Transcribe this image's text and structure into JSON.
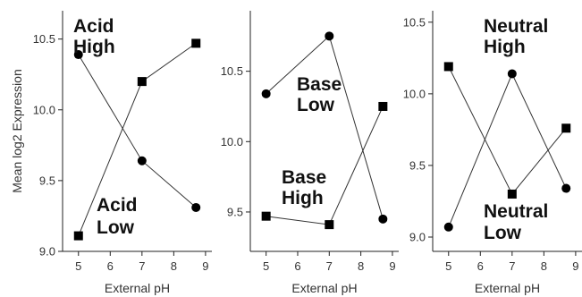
{
  "chart_data": [
    {
      "type": "line",
      "title": "",
      "xlabel": "External pH",
      "ylabel": "Mean log2 Expression",
      "xlim": [
        4.5,
        9.2
      ],
      "ylim": [
        9.0,
        10.7
      ],
      "xticks": [
        5,
        6,
        7,
        8,
        9
      ],
      "yticks": [
        9.0,
        9.5,
        10.0,
        10.5
      ],
      "ytick_labels": [
        "9.0",
        "9.5",
        "10.0",
        "10.5"
      ],
      "series": [
        {
          "marker": "circle",
          "x": [
            5.0,
            7.0,
            8.7
          ],
          "y": [
            10.39,
            9.64,
            9.31
          ]
        },
        {
          "marker": "square",
          "x": [
            5.0,
            7.0,
            8.7
          ],
          "y": [
            9.11,
            10.2,
            10.47
          ]
        }
      ],
      "annotations": [
        {
          "lines": [
            "Acid",
            "High"
          ]
        },
        {
          "lines": [
            "Acid",
            "Low"
          ]
        }
      ]
    },
    {
      "type": "line",
      "title": "",
      "xlabel": "External pH",
      "ylabel": "",
      "xlim": [
        4.5,
        9.2
      ],
      "ylim": [
        9.22,
        10.93
      ],
      "xticks": [
        5,
        6,
        7,
        8,
        9
      ],
      "yticks": [
        9.5,
        10.0,
        10.5
      ],
      "ytick_labels": [
        "9.5",
        "10.0",
        "10.5"
      ],
      "series": [
        {
          "marker": "circle",
          "x": [
            5.0,
            7.0,
            8.7
          ],
          "y": [
            10.34,
            10.75,
            9.45
          ]
        },
        {
          "marker": "square",
          "x": [
            5.0,
            7.0,
            8.7
          ],
          "y": [
            9.47,
            9.41,
            10.25
          ]
        }
      ],
      "annotations": [
        {
          "lines": [
            "Base",
            "Low"
          ]
        },
        {
          "lines": [
            "Base",
            "High"
          ]
        }
      ]
    },
    {
      "type": "line",
      "title": "",
      "xlabel": "External pH",
      "ylabel": "",
      "xlim": [
        4.5,
        9.2
      ],
      "ylim": [
        8.9,
        10.58
      ],
      "xticks": [
        5,
        6,
        7,
        8,
        9
      ],
      "yticks": [
        9.0,
        9.5,
        10.0,
        10.5
      ],
      "ytick_labels": [
        "9.0",
        "9.5",
        "10.0",
        "10.5"
      ],
      "series": [
        {
          "marker": "circle",
          "x": [
            5.0,
            7.0,
            8.7
          ],
          "y": [
            9.07,
            10.14,
            9.34
          ]
        },
        {
          "marker": "square",
          "x": [
            5.0,
            7.0,
            8.7
          ],
          "y": [
            10.19,
            9.3,
            9.76
          ]
        }
      ],
      "annotations": [
        {
          "lines": [
            "Neutral",
            "High"
          ]
        },
        {
          "lines": [
            "Neutral",
            "Low"
          ]
        }
      ]
    }
  ]
}
